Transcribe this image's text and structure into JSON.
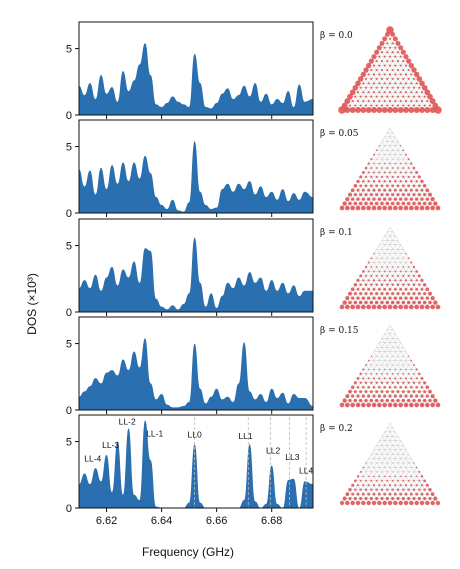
{
  "chart_data": {
    "type": "area",
    "ylabel": "DOS (×10³)",
    "xlabel": "Frequency (GHz)",
    "xlim": [
      6.61,
      6.695
    ],
    "ylim": [
      0,
      7
    ],
    "x_ticks": [
      "6.62",
      "6.64",
      "6.66",
      "6.68"
    ],
    "x_tick_values": [
      6.62,
      6.64,
      6.66,
      6.68
    ],
    "y_ticks": [
      "0",
      "5"
    ],
    "y_tick_values": [
      0,
      5
    ],
    "fill_color": "#2a6fb0",
    "lattice_color": "#e05555",
    "panels": [
      {
        "beta_label": "β = 0.0",
        "beta": 0.0,
        "x": [
          6.61,
          6.612,
          6.614,
          6.616,
          6.618,
          6.62,
          6.622,
          6.624,
          6.626,
          6.628,
          6.63,
          6.632,
          6.634,
          6.636,
          6.638,
          6.64,
          6.642,
          6.644,
          6.646,
          6.648,
          6.65,
          6.652,
          6.654,
          6.656,
          6.658,
          6.66,
          6.662,
          6.664,
          6.666,
          6.668,
          6.67,
          6.672,
          6.674,
          6.676,
          6.678,
          6.68,
          6.682,
          6.684,
          6.686,
          6.688,
          6.69,
          6.692,
          6.695
        ],
        "y": [
          2.2,
          1.5,
          2.4,
          1.2,
          3.0,
          1.6,
          2.1,
          1.0,
          3.3,
          1.8,
          2.6,
          3.8,
          5.4,
          3.0,
          0.8,
          0.6,
          0.9,
          1.4,
          1.0,
          0.8,
          0.6,
          4.6,
          2.4,
          0.6,
          0.5,
          0.9,
          1.6,
          2.0,
          1.2,
          1.5,
          2.2,
          1.4,
          2.4,
          1.0,
          1.6,
          0.8,
          1.2,
          0.9,
          1.8,
          0.6,
          2.3,
          1.0,
          1.2
        ]
      },
      {
        "beta_label": "β = 0.05",
        "beta": 0.05,
        "x": [
          6.61,
          6.612,
          6.614,
          6.616,
          6.618,
          6.62,
          6.622,
          6.624,
          6.626,
          6.628,
          6.63,
          6.632,
          6.634,
          6.636,
          6.638,
          6.64,
          6.642,
          6.644,
          6.646,
          6.648,
          6.65,
          6.652,
          6.654,
          6.656,
          6.658,
          6.66,
          6.662,
          6.664,
          6.666,
          6.668,
          6.67,
          6.672,
          6.674,
          6.676,
          6.678,
          6.68,
          6.682,
          6.684,
          6.686,
          6.688,
          6.69,
          6.692,
          6.695
        ],
        "y": [
          3.3,
          2.0,
          3.2,
          1.4,
          3.4,
          1.8,
          3.6,
          2.2,
          3.8,
          2.4,
          3.8,
          2.6,
          4.3,
          3.0,
          1.2,
          0.6,
          0.3,
          1.0,
          0.2,
          0.1,
          0.8,
          5.4,
          1.6,
          0.6,
          0.3,
          0.4,
          1.8,
          2.2,
          1.6,
          2.2,
          1.8,
          2.4,
          1.4,
          2.0,
          1.2,
          1.6,
          1.0,
          1.8,
          0.9,
          1.5,
          1.0,
          1.6,
          1.2
        ]
      },
      {
        "beta_label": "β = 0.1",
        "beta": 0.1,
        "x": [
          6.61,
          6.612,
          6.614,
          6.616,
          6.618,
          6.62,
          6.622,
          6.624,
          6.626,
          6.628,
          6.63,
          6.632,
          6.634,
          6.636,
          6.638,
          6.64,
          6.642,
          6.644,
          6.646,
          6.648,
          6.65,
          6.652,
          6.654,
          6.656,
          6.658,
          6.66,
          6.662,
          6.664,
          6.666,
          6.668,
          6.67,
          6.672,
          6.674,
          6.676,
          6.678,
          6.68,
          6.682,
          6.684,
          6.686,
          6.688,
          6.69,
          6.692,
          6.695
        ],
        "y": [
          1.8,
          2.4,
          1.8,
          2.8,
          1.6,
          2.6,
          3.4,
          2.0,
          3.2,
          2.6,
          3.8,
          2.2,
          4.8,
          4.6,
          1.0,
          0.4,
          0.2,
          0.5,
          0.2,
          0.6,
          1.4,
          5.6,
          2.2,
          0.4,
          1.4,
          0.3,
          1.2,
          2.2,
          1.8,
          2.6,
          2.0,
          3.0,
          2.2,
          2.6,
          1.6,
          2.4,
          1.6,
          2.2,
          1.4,
          2.0,
          1.2,
          1.6,
          1.6
        ]
      },
      {
        "beta_label": "β = 0.15",
        "beta": 0.15,
        "x": [
          6.61,
          6.612,
          6.614,
          6.616,
          6.618,
          6.62,
          6.622,
          6.624,
          6.626,
          6.628,
          6.63,
          6.632,
          6.634,
          6.636,
          6.638,
          6.64,
          6.642,
          6.644,
          6.646,
          6.648,
          6.65,
          6.652,
          6.654,
          6.656,
          6.658,
          6.66,
          6.662,
          6.664,
          6.666,
          6.668,
          6.67,
          6.672,
          6.674,
          6.676,
          6.678,
          6.68,
          6.682,
          6.684,
          6.686,
          6.688,
          6.69,
          6.692,
          6.695
        ],
        "y": [
          1.0,
          1.4,
          1.8,
          2.4,
          2.0,
          2.8,
          3.0,
          2.6,
          3.8,
          3.0,
          4.4,
          3.2,
          5.4,
          2.0,
          0.8,
          1.2,
          0.4,
          0.2,
          0.2,
          0.3,
          0.6,
          5.0,
          1.6,
          0.5,
          1.0,
          1.6,
          0.8,
          1.0,
          0.6,
          2.0,
          5.1,
          1.4,
          0.8,
          1.2,
          0.6,
          1.6,
          0.9,
          1.3,
          0.5,
          1.2,
          0.9,
          0.9,
          0.3
        ]
      },
      {
        "beta_label": "β = 0.2",
        "beta": 0.2,
        "x": [
          6.61,
          6.612,
          6.614,
          6.616,
          6.618,
          6.62,
          6.622,
          6.624,
          6.626,
          6.628,
          6.63,
          6.632,
          6.634,
          6.636,
          6.638,
          6.64,
          6.642,
          6.644,
          6.646,
          6.648,
          6.65,
          6.652,
          6.654,
          6.656,
          6.658,
          6.66,
          6.662,
          6.664,
          6.666,
          6.668,
          6.67,
          6.672,
          6.674,
          6.676,
          6.678,
          6.68,
          6.682,
          6.684,
          6.686,
          6.688,
          6.69,
          6.692,
          6.695
        ],
        "y": [
          1.8,
          2.6,
          1.8,
          3.0,
          2.0,
          4.0,
          1.2,
          5.0,
          1.0,
          6.0,
          1.0,
          0.6,
          6.6,
          3.6,
          0.1,
          0.0,
          0.0,
          0.0,
          0.0,
          0.0,
          0.4,
          4.8,
          0.4,
          0.0,
          0.0,
          0.0,
          0.0,
          0.0,
          0.0,
          0.0,
          0.6,
          4.8,
          0.5,
          0.0,
          0.3,
          3.2,
          0.3,
          0.0,
          2.1,
          2.2,
          0.0,
          2.0,
          1.8
        ],
        "annotations": [
          {
            "label": "LL-4",
            "x": 6.615,
            "y": 3.5
          },
          {
            "label": "LL-3",
            "x": 6.6215,
            "y": 4.5
          },
          {
            "label": "LL-2",
            "x": 6.6275,
            "y": 6.3
          },
          {
            "label": "LL-1",
            "x": 6.6375,
            "y": 5.4
          },
          {
            "label": "LL0",
            "x": 6.652,
            "y": 5.3
          },
          {
            "label": "LL1",
            "x": 6.6705,
            "y": 5.2
          },
          {
            "label": "LL2",
            "x": 6.6805,
            "y": 4.1
          },
          {
            "label": "LL3",
            "x": 6.6875,
            "y": 3.6
          },
          {
            "label": "LL4",
            "x": 6.6925,
            "y": 2.6
          }
        ],
        "dashed_lines_x": [
          6.652,
          6.6715,
          6.6795,
          6.6865,
          6.6925
        ]
      }
    ]
  }
}
